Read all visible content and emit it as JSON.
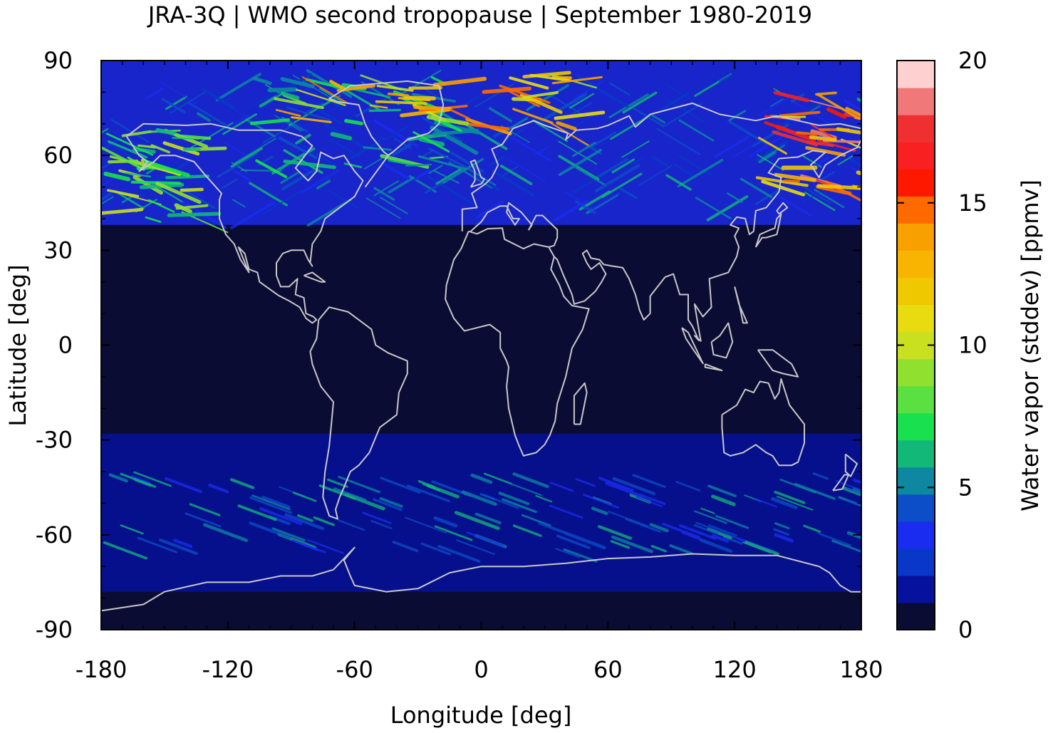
{
  "chart_data": {
    "type": "heatmap",
    "title": "JRA-3Q | WMO second tropopause | September 1980-2019",
    "xlabel": "Longitude [deg]",
    "ylabel": "Latitude [deg]",
    "xlim": [
      -180,
      180
    ],
    "ylim": [
      -90,
      90
    ],
    "x_ticks": [
      -180,
      -120,
      -60,
      0,
      60,
      120,
      180
    ],
    "y_ticks": [
      -90,
      -60,
      -30,
      0,
      30,
      60,
      90
    ],
    "grid": false,
    "background_color": "#0b0c33",
    "coastline_color": "#c8c8c8",
    "colorbar": {
      "label": "Water vapor (stddev) [ppmv]",
      "range": [
        0,
        20
      ],
      "ticks": [
        0,
        5,
        10,
        15,
        20
      ],
      "placement": "right",
      "colors": [
        "#0b0c33",
        "#06129e",
        "#0938c8",
        "#1a2cf0",
        "#0c4ec8",
        "#0d88a0",
        "#12b878",
        "#18e04e",
        "#5ae040",
        "#90e030",
        "#c8e020",
        "#e8dc10",
        "#f0c800",
        "#f8b400",
        "#f8a000",
        "#ff6a00",
        "#ff1800",
        "#f82020",
        "#f03030",
        "#f07878",
        "#ffd0d0"
      ]
    },
    "features": {
      "southern_band": {
        "lat_range": [
          -78,
          -28
        ],
        "value": 1.5
      },
      "southern_storm_track": {
        "lat_range": [
          -65,
          -40
        ],
        "value": 3
      },
      "southern_coast_trace": {
        "lat": -76
      },
      "northern_band": {
        "lat_range": [
          38,
          90
        ],
        "value": 3
      },
      "northern_streaks": [
        {
          "lon_range": [
            -180,
            -140
          ],
          "lat_range": [
            40,
            68
          ],
          "value": 10
        },
        {
          "lon_range": [
            -120,
            -20
          ],
          "lat_range": [
            55,
            85
          ],
          "value": 8
        },
        {
          "lon_range": [
            -100,
            40
          ],
          "lat_range": [
            70,
            86
          ],
          "value": 15
        },
        {
          "lon_range": [
            130,
            180
          ],
          "lat_range": [
            50,
            80
          ],
          "value": 19
        }
      ]
    }
  }
}
